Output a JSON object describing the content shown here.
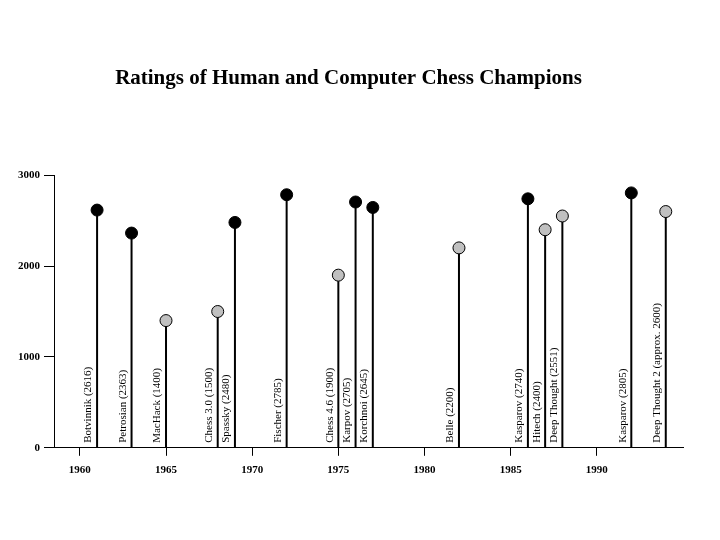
{
  "chart_data": {
    "type": "lollipop",
    "title": "Ratings of Human and Computer Chess Champions",
    "x": [
      1961,
      1963,
      1965,
      1968,
      1969,
      1972,
      1975,
      1976,
      1977,
      1982,
      1986,
      1987,
      1988,
      1992,
      1994
    ],
    "values": [
      2616,
      2363,
      1400,
      1500,
      2480,
      2785,
      1900,
      2705,
      2645,
      2200,
      2740,
      2400,
      2551,
      2805,
      2600
    ],
    "point_labels": [
      "Botvinnik (2616)",
      "Petrosian (2363)",
      "MacHack (1400)",
      "Chess 3.0 (1500)",
      "Spassky (2480)",
      "Fischer (2785)",
      "Chess 4.6 (1900)",
      "Karpov (2705)",
      "Korchnoi (2645)",
      "Belle (2200)",
      "Kasparov (2740)",
      "Hitech (2400)",
      "Deep Thought (2551)",
      "Kasparov (2805)",
      "Deep Thought 2 (approx. 2600)"
    ],
    "colors": [
      "#000000",
      "#000000",
      "#c0c0c0",
      "#c0c0c0",
      "#000000",
      "#000000",
      "#c0c0c0",
      "#000000",
      "#000000",
      "#c0c0c0",
      "#000000",
      "#c0c0c0",
      "#c0c0c0",
      "#000000",
      "#c0c0c0"
    ],
    "xlim": [
      1958.5,
      1995
    ],
    "xticks": [
      1960,
      1965,
      1970,
      1975,
      1980,
      1985,
      1990
    ],
    "ylim": [
      0,
      3000
    ],
    "yticks": [
      0,
      1000,
      2000,
      3000
    ],
    "grid": false
  }
}
